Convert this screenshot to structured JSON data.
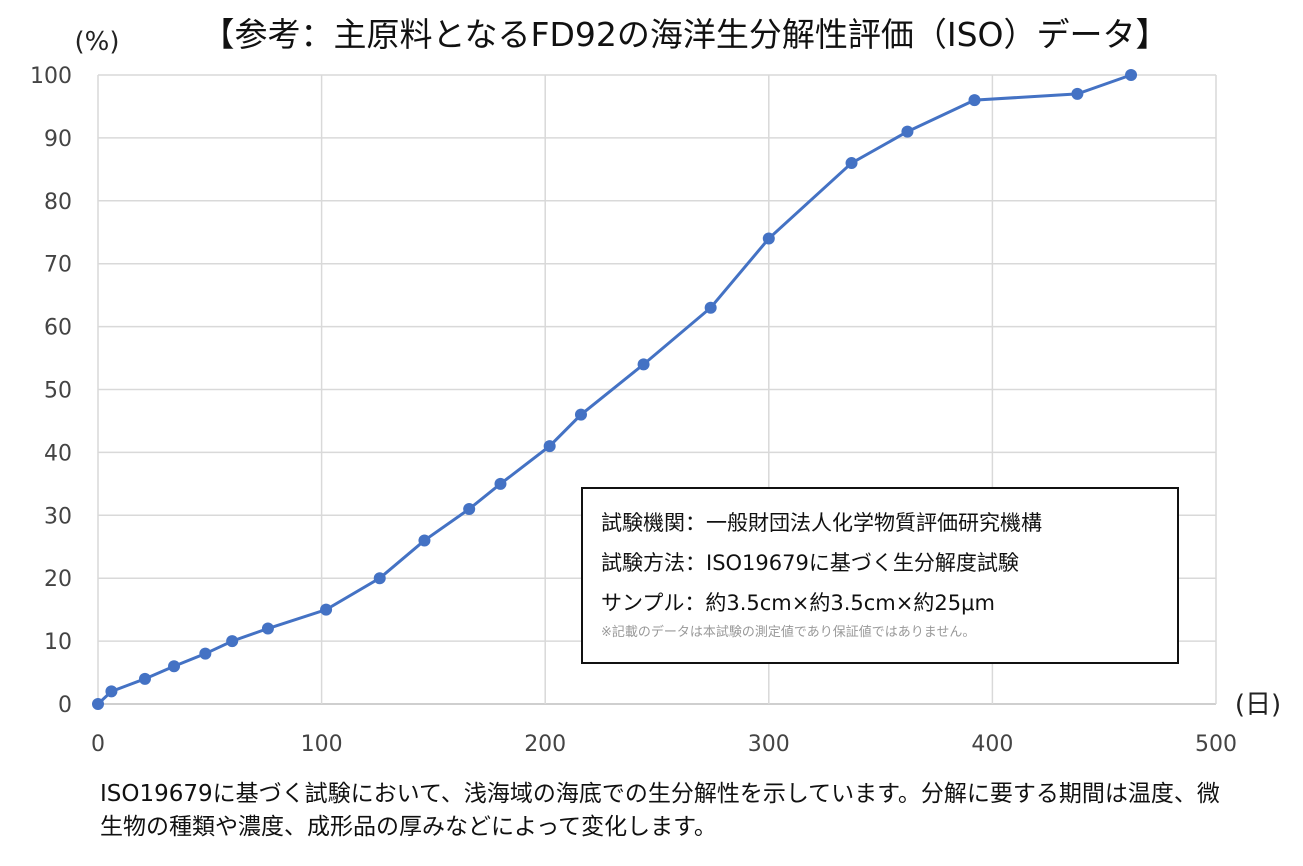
{
  "chart_data": {
    "type": "line",
    "title": "【参考：主原料となるFD92の海洋生分解性評価（ISO）データ】",
    "ylabel": "(%)",
    "xlabel": "(日)",
    "xlim": [
      0,
      500
    ],
    "ylim": [
      0,
      100
    ],
    "xticks": [
      "0",
      "100",
      "200",
      "300",
      "400",
      "500"
    ],
    "yticks": [
      "0",
      "10",
      "20",
      "30",
      "40",
      "50",
      "60",
      "70",
      "80",
      "90",
      "100"
    ],
    "grid": true,
    "color": "#4472c4",
    "series": [
      {
        "x": [
          0,
          6,
          21,
          34,
          48,
          60,
          76,
          102,
          126,
          146,
          166,
          180,
          202,
          216,
          244,
          274,
          300,
          337,
          362,
          392,
          438,
          462
        ],
        "y": [
          0,
          2,
          4,
          6,
          8,
          10,
          12,
          15,
          20,
          26,
          31,
          35,
          41,
          46,
          54,
          63,
          74,
          86,
          91,
          96,
          97,
          100
        ]
      }
    ]
  },
  "note": {
    "line1": "試験機関：一般財団法人化学物質評価研究機構",
    "line2": "試験方法：ISO19679に基づく生分解度試験",
    "line3": "サンプル：約3.5cm×約3.5cm×約25μm",
    "disclaimer": "※記載のデータは本試験の測定値であり保証値ではありません。"
  },
  "caption": "ISO19679に基づく試験において、浅海域の海底での生分解性を示しています。分解に要する期間は温度、微生物の種類や濃度、成形品の厚みなどによって変化します。"
}
